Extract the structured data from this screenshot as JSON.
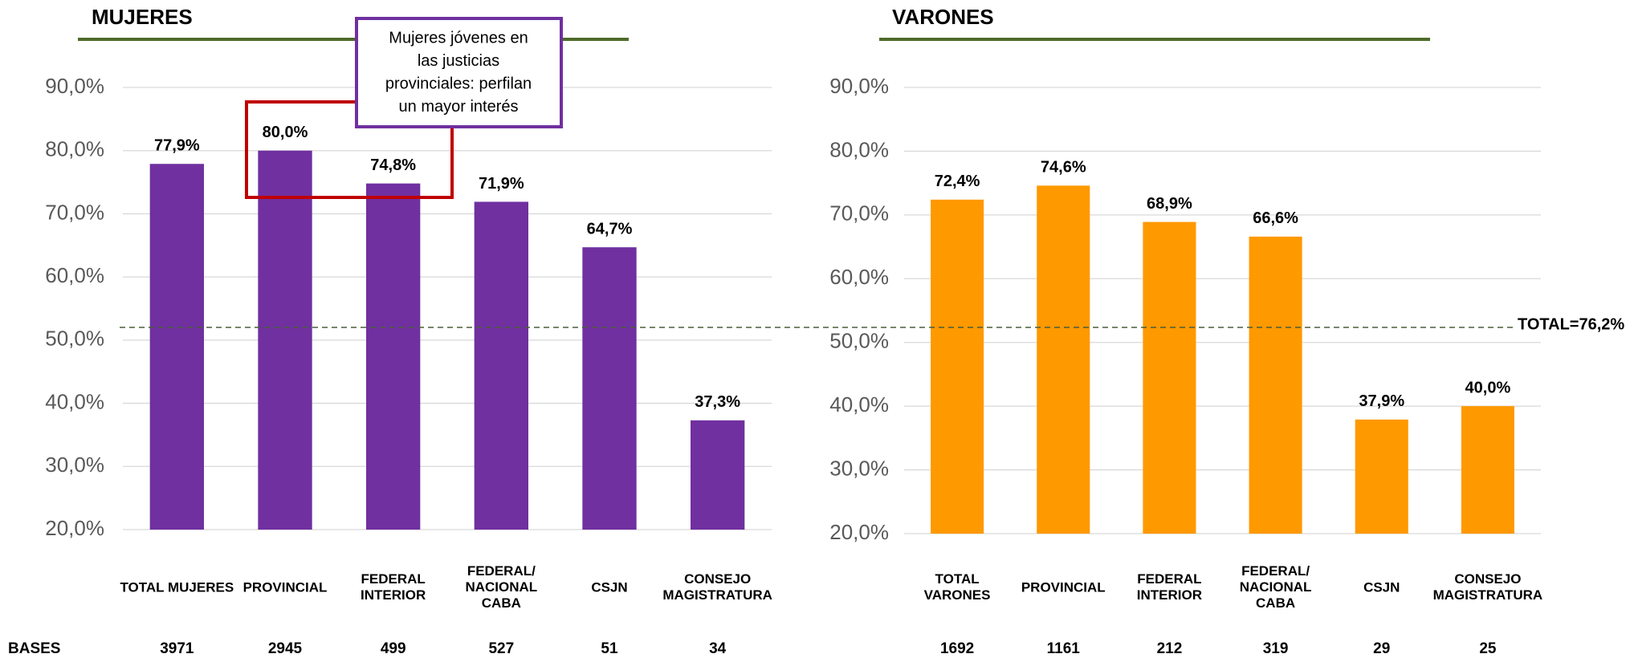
{
  "chart_data": [
    {
      "type": "bar",
      "title": "MUJERES",
      "categories": [
        "TOTAL MUJERES",
        "PROVINCIAL",
        "FEDERAL\nINTERIOR",
        "FEDERAL/\nNACIONAL\nCABA",
        "CSJN",
        "CONSEJO\nMAGISTRATURA"
      ],
      "values": [
        77.9,
        80.0,
        74.8,
        71.9,
        64.7,
        37.3
      ],
      "value_labels": [
        "77,9%",
        "80,0%",
        "74,8%",
        "71,9%",
        "64,7%",
        "37,3%"
      ],
      "bases": [
        3971,
        2945,
        499,
        527,
        51,
        34
      ],
      "color": "#7030a0",
      "ylim": [
        20,
        90
      ],
      "yticks": [
        {
          "value": 20,
          "label": "20,0%"
        },
        {
          "value": 30,
          "label": "30,0%"
        },
        {
          "value": 40,
          "label": "40,0%"
        },
        {
          "value": 50,
          "label": "50,0%"
        },
        {
          "value": 60,
          "label": "60,0%"
        },
        {
          "value": 70,
          "label": "70,0%"
        },
        {
          "value": 80,
          "label": "80,0%"
        },
        {
          "value": 90,
          "label": "90,0%"
        }
      ],
      "grid": true,
      "annotation": [
        "Mujeres jóvenes en",
        "las justicias",
        "provinciales: perfilan",
        "un mayor interés"
      ]
    },
    {
      "type": "bar",
      "title": "VARONES",
      "categories": [
        "TOTAL\nVARONES",
        "PROVINCIAL",
        "FEDERAL\nINTERIOR",
        "FEDERAL/\nNACIONAL\nCABA",
        "CSJN",
        "CONSEJO\nMAGISTRATURA"
      ],
      "values": [
        72.4,
        74.6,
        68.9,
        66.6,
        37.9,
        40.0
      ],
      "value_labels": [
        "72,4%",
        "74,6%",
        "68,9%",
        "66,6%",
        "37,9%",
        "40,0%"
      ],
      "bases": [
        1692,
        1161,
        212,
        319,
        29,
        25
      ],
      "color": "#ff9900",
      "ylim": [
        20,
        90
      ],
      "yticks": [
        {
          "value": 20,
          "label": "20,0%"
        },
        {
          "value": 30,
          "label": "30,0%"
        },
        {
          "value": 40,
          "label": "40,0%"
        },
        {
          "value": 50,
          "label": "50,0%"
        },
        {
          "value": 60,
          "label": "60,0%"
        },
        {
          "value": 70,
          "label": "70,0%"
        },
        {
          "value": 80,
          "label": "80,0%"
        },
        {
          "value": 90,
          "label": "90,0%"
        }
      ],
      "grid": true
    }
  ],
  "bases_label": "BASES",
  "reference_label": "TOTAL=76,2%"
}
